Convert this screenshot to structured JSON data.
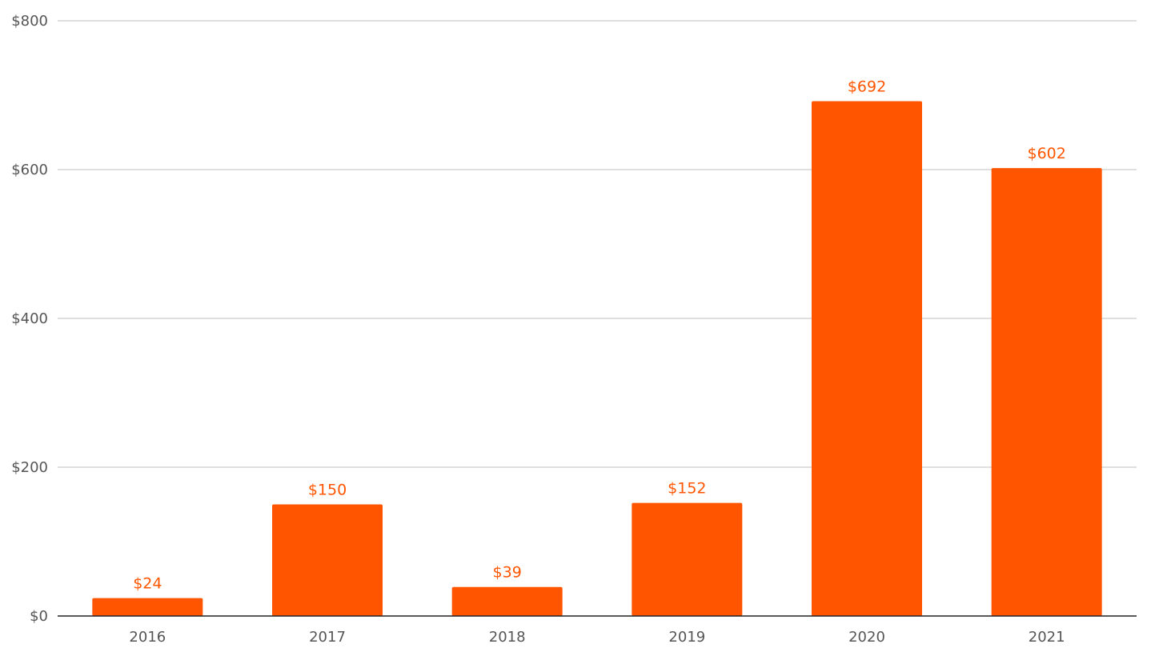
{
  "chart_data": {
    "type": "bar",
    "categories": [
      "2016",
      "2017",
      "2018",
      "2019",
      "2020",
      "2021"
    ],
    "values": [
      24,
      150,
      39,
      152,
      692,
      602
    ],
    "value_labels": [
      "$24",
      "$150",
      "$39",
      "$152",
      "$692",
      "$602"
    ],
    "y_ticks": [
      0,
      200,
      400,
      600,
      800
    ],
    "y_tick_labels": [
      "$0",
      "$200",
      "$400",
      "$600",
      "$800"
    ],
    "ylim": [
      0,
      800
    ],
    "title": "",
    "xlabel": "",
    "ylabel": "",
    "grid": true,
    "legend": "none",
    "colors": {
      "bar": "#ff5500",
      "value_label": "#ff5500",
      "grid": "#cccccc",
      "axis": "#222222",
      "tick_label": "#555555"
    }
  }
}
